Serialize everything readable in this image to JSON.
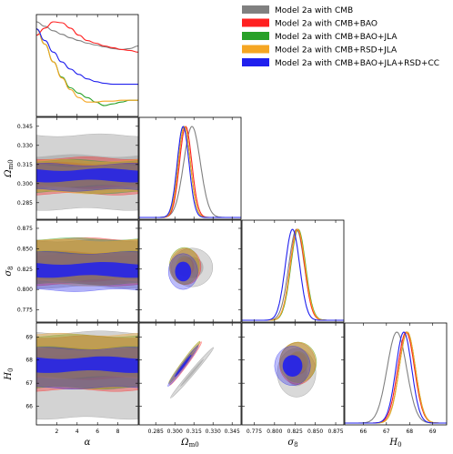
{
  "chart_data": {
    "type": "triangle-plot",
    "legend_placement": "top-right",
    "series": [
      {
        "name": "Model 2a with CMB",
        "color": "#808080",
        "alpha_curve": [
          1,
          0.95,
          0.9,
          0.86,
          0.82,
          0.79,
          0.76,
          0.74,
          0.72,
          0.7,
          0.69,
          0.7,
          0.73
        ],
        "Om": {
          "mean": 0.3135,
          "sd": 0.0065,
          "band": [
            0.28,
            0.338
          ],
          "core": [
            0.296,
            0.322
          ]
        },
        "s8": {
          "mean": 0.827,
          "sd": 0.0095,
          "band": [
            0.803,
            0.86
          ],
          "core": [
            0.808,
            0.843
          ]
        },
        "H0": {
          "mean": 67.45,
          "sd": 0.42,
          "band": [
            65.5,
            69.2
          ],
          "core": [
            66.8,
            68.2
          ]
        }
      },
      {
        "name": "Model 2a with CMB+BAO",
        "color": "#ff2020",
        "alpha_curve": [
          0.85,
          0.93,
          1,
          0.99,
          0.93,
          0.85,
          0.79,
          0.76,
          0.73,
          0.71,
          0.69,
          0.68,
          0.66
        ],
        "Om": {
          "mean": 0.3085,
          "sd": 0.0048,
          "band": [
            0.292,
            0.32
          ],
          "core": [
            0.297,
            0.316
          ]
        },
        "s8": {
          "mean": 0.828,
          "sd": 0.0088,
          "band": [
            0.806,
            0.862
          ],
          "core": [
            0.811,
            0.846
          ]
        },
        "H0": {
          "mean": 67.85,
          "sd": 0.36,
          "band": [
            66.7,
            69.0
          ],
          "core": [
            67.2,
            68.5
          ]
        }
      },
      {
        "name": "Model 2a with CMB+BAO+JLA",
        "color": "#28a028",
        "alpha_curve": [
          0.92,
          0.75,
          0.55,
          0.38,
          0.26,
          0.2,
          0.15,
          0.1,
          0.06,
          0.08,
          0.1,
          0.12,
          0.12
        ],
        "Om": {
          "mean": 0.3075,
          "sd": 0.0047,
          "band": [
            0.293,
            0.318
          ],
          "core": [
            0.298,
            0.314
          ]
        },
        "s8": {
          "mean": 0.829,
          "sd": 0.009,
          "band": [
            0.807,
            0.862
          ],
          "core": [
            0.812,
            0.846
          ]
        },
        "H0": {
          "mean": 67.9,
          "sd": 0.35,
          "band": [
            66.8,
            69.05
          ],
          "core": [
            67.25,
            68.55
          ]
        }
      },
      {
        "name": "Model 2a with CMB+RSD+JLA",
        "color": "#f5a623",
        "alpha_curve": [
          0.92,
          0.75,
          0.55,
          0.37,
          0.24,
          0.15,
          0.1,
          0.1,
          0.11,
          0.11,
          0.12,
          0.12,
          0.12
        ],
        "Om": {
          "mean": 0.3075,
          "sd": 0.0047,
          "band": [
            0.293,
            0.318
          ],
          "core": [
            0.298,
            0.314
          ]
        },
        "s8": {
          "mean": 0.8285,
          "sd": 0.009,
          "band": [
            0.806,
            0.86
          ],
          "core": [
            0.811,
            0.845
          ]
        },
        "H0": {
          "mean": 67.9,
          "sd": 0.35,
          "band": [
            66.8,
            69.1
          ],
          "core": [
            67.25,
            68.5
          ]
        }
      },
      {
        "name": "Model 2a with CMB+BAO+JLA+RSD+CC",
        "color": "#2020ee",
        "alpha_curve": [
          0.92,
          0.79,
          0.66,
          0.55,
          0.47,
          0.41,
          0.36,
          0.33,
          0.31,
          0.3,
          0.3,
          0.3,
          0.3
        ],
        "Om": {
          "mean": 0.3065,
          "sd": 0.0046,
          "band": [
            0.295,
            0.315
          ],
          "core": [
            0.302,
            0.311
          ]
        },
        "s8": {
          "mean": 0.822,
          "sd": 0.0088,
          "band": [
            0.799,
            0.845
          ],
          "core": [
            0.816,
            0.832
          ]
        },
        "H0": {
          "mean": 67.75,
          "sd": 0.34,
          "band": [
            66.8,
            68.5
          ],
          "core": [
            67.5,
            68.1
          ]
        }
      }
    ],
    "params": [
      {
        "key": "alpha",
        "label": "α",
        "range": [
          0,
          10
        ],
        "ticks": [
          2,
          4,
          6,
          8
        ]
      },
      {
        "key": "Om",
        "label": "Ω",
        "label_sub": "m0",
        "range": [
          0.272,
          0.352
        ],
        "ticks": [
          0.285,
          0.3,
          0.315,
          0.33,
          0.345
        ]
      },
      {
        "key": "s8",
        "label": "σ",
        "label_sub": "8",
        "range": [
          0.76,
          0.885
        ],
        "ticks": [
          0.775,
          0.8,
          0.825,
          0.85,
          0.875
        ]
      },
      {
        "key": "H0",
        "label": "H",
        "label_sub": "0",
        "range": [
          65.2,
          69.6
        ],
        "ticks": [
          66,
          67,
          68,
          69
        ]
      }
    ],
    "tick_labels": {
      "alpha": [
        "2",
        "4",
        "6",
        "8"
      ],
      "Om": [
        "0.285",
        "0.300",
        "0.315",
        "0.330",
        "0.345"
      ],
      "s8": [
        "0.775",
        "0.800",
        "0.825",
        "0.850",
        "0.875"
      ],
      "H0": [
        "66",
        "67",
        "68",
        "69"
      ]
    }
  }
}
